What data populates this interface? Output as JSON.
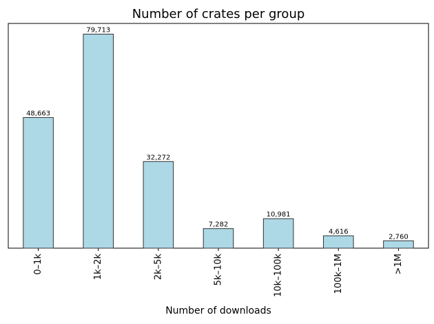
{
  "chart_data": {
    "type": "bar",
    "title": "Number of crates per group",
    "xlabel": "Number of downloads",
    "categories": [
      "0–1k",
      "1k–2k",
      "2k–5k",
      "5k–10k",
      "10k–100k",
      "100k–1M",
      ">1M"
    ],
    "values": [
      48663,
      79713,
      32272,
      7282,
      10981,
      4616,
      2760
    ],
    "value_labels": [
      "48,663",
      "79,713",
      "32,272",
      "7,282",
      "10,981",
      "4,616",
      "2,760"
    ],
    "color": "#add8e6",
    "edgecolor": "#333333",
    "ylim": [
      0,
      83699
    ]
  }
}
